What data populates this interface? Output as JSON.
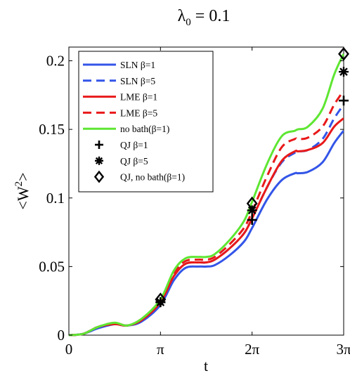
{
  "chart_data": {
    "type": "line",
    "title_symbol": "λ",
    "title_subscript": "0",
    "title_rest": " = 0.1",
    "xlabel": "t",
    "ylabel_prefix": "<W",
    "ylabel_sup": "2",
    "ylabel_suffix": ">",
    "xlim": [
      0,
      9.4248
    ],
    "ylim": [
      0,
      0.21
    ],
    "x_ticks": [
      {
        "value": 0,
        "label": "0"
      },
      {
        "value": 3.1416,
        "label": "π"
      },
      {
        "value": 6.2832,
        "label": "2π"
      },
      {
        "value": 9.4248,
        "label": "3π"
      }
    ],
    "y_ticks": [
      {
        "value": 0,
        "label": "0"
      },
      {
        "value": 0.05,
        "label": "0.05"
      },
      {
        "value": 0.1,
        "label": "0.1"
      },
      {
        "value": 0.15,
        "label": "0.15"
      },
      {
        "value": 0.2,
        "label": "0.2"
      }
    ],
    "legend_position": "top-left",
    "grid": false,
    "series": [
      {
        "name": "SLN β=1",
        "kind": "line",
        "color": "#3355e8",
        "dash": "solid",
        "x": [
          0,
          0.5,
          1.0,
          1.57,
          2.0,
          2.5,
          3.14,
          3.6,
          4.0,
          4.45,
          4.71,
          5.0,
          5.5,
          6.0,
          6.28,
          6.8,
          7.3,
          7.75,
          7.85,
          8.2,
          8.7,
          9.1,
          9.42
        ],
        "y": [
          0,
          0.001,
          0.005,
          0.008,
          0.007,
          0.01,
          0.022,
          0.04,
          0.049,
          0.05,
          0.05,
          0.051,
          0.058,
          0.068,
          0.078,
          0.099,
          0.113,
          0.118,
          0.118,
          0.119,
          0.126,
          0.14,
          0.149
        ]
      },
      {
        "name": "SLN β=5",
        "kind": "line",
        "color": "#3355e8",
        "dash": "dashed",
        "x": [
          0,
          0.5,
          1.0,
          1.57,
          2.0,
          2.5,
          3.14,
          3.6,
          4.0,
          4.45,
          4.71,
          5.0,
          5.5,
          6.0,
          6.28,
          6.8,
          7.3,
          7.75,
          7.85,
          8.2,
          8.7,
          9.1,
          9.42
        ],
        "y": [
          0,
          0.001,
          0.006,
          0.008,
          0.007,
          0.011,
          0.024,
          0.043,
          0.052,
          0.053,
          0.053,
          0.055,
          0.063,
          0.074,
          0.085,
          0.108,
          0.126,
          0.133,
          0.134,
          0.135,
          0.143,
          0.158,
          0.168
        ]
      },
      {
        "name": "LME β=1",
        "kind": "line",
        "color": "#e8191a",
        "dash": "solid",
        "x": [
          0,
          0.5,
          1.0,
          1.57,
          2.0,
          2.5,
          3.14,
          3.6,
          4.0,
          4.45,
          4.71,
          5.0,
          5.5,
          6.0,
          6.28,
          6.8,
          7.3,
          7.75,
          7.85,
          8.2,
          8.7,
          9.1,
          9.42
        ],
        "y": [
          0,
          0.001,
          0.006,
          0.008,
          0.007,
          0.011,
          0.024,
          0.043,
          0.052,
          0.053,
          0.053,
          0.055,
          0.063,
          0.074,
          0.085,
          0.108,
          0.127,
          0.134,
          0.134,
          0.135,
          0.14,
          0.152,
          0.158
        ]
      },
      {
        "name": "LME β=5",
        "kind": "line",
        "color": "#e8191a",
        "dash": "dashed",
        "x": [
          0,
          0.5,
          1.0,
          1.57,
          2.0,
          2.5,
          3.14,
          3.6,
          4.0,
          4.45,
          4.71,
          5.0,
          5.5,
          6.0,
          6.28,
          6.8,
          7.3,
          7.75,
          7.85,
          8.2,
          8.7,
          9.1,
          9.42
        ],
        "y": [
          0,
          0.001,
          0.006,
          0.009,
          0.007,
          0.012,
          0.025,
          0.045,
          0.054,
          0.055,
          0.055,
          0.057,
          0.066,
          0.078,
          0.09,
          0.116,
          0.137,
          0.143,
          0.143,
          0.144,
          0.152,
          0.168,
          0.178
        ]
      },
      {
        "name": "no bath(β=1)",
        "kind": "line",
        "color": "#5ee632",
        "dash": "solid",
        "x": [
          0,
          0.5,
          1.0,
          1.57,
          2.0,
          2.5,
          3.14,
          3.6,
          4.0,
          4.45,
          4.71,
          5.0,
          5.5,
          6.0,
          6.28,
          6.8,
          7.3,
          7.75,
          7.85,
          8.2,
          8.7,
          9.1,
          9.42
        ],
        "y": [
          0,
          0.001,
          0.006,
          0.009,
          0.007,
          0.012,
          0.026,
          0.047,
          0.056,
          0.057,
          0.057,
          0.059,
          0.069,
          0.083,
          0.097,
          0.125,
          0.145,
          0.149,
          0.15,
          0.152,
          0.165,
          0.19,
          0.205
        ]
      },
      {
        "name": "QJ β=1",
        "kind": "marker",
        "marker": "plus",
        "x": [
          3.1416,
          6.2832,
          9.4248
        ],
        "y": [
          0.024,
          0.084,
          0.171
        ]
      },
      {
        "name": "QJ β=5",
        "kind": "marker",
        "marker": "asterisk",
        "x": [
          3.1416,
          6.2832,
          9.4248
        ],
        "y": [
          0.024,
          0.091,
          0.192
        ]
      },
      {
        "name": "QJ, no bath(β=1)",
        "kind": "marker",
        "marker": "diamond",
        "x": [
          3.1416,
          6.2832,
          9.4248
        ],
        "y": [
          0.026,
          0.096,
          0.205
        ]
      }
    ]
  }
}
